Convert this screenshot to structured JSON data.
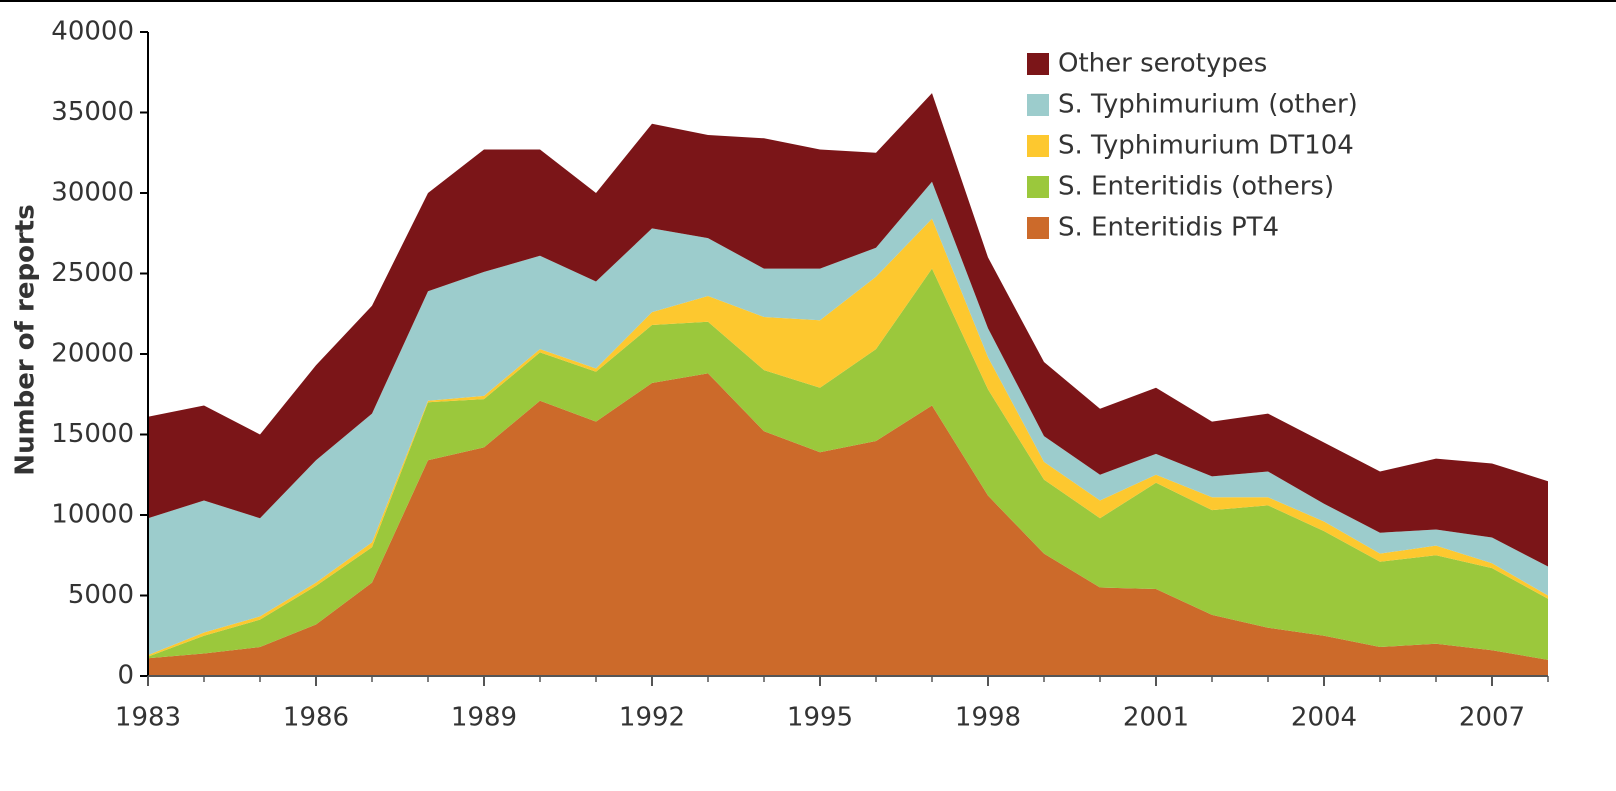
{
  "chart_data": {
    "type": "stacked_area",
    "y_label": "Number of reports",
    "x": [
      1983,
      1984,
      1985,
      1986,
      1987,
      1988,
      1989,
      1990,
      1991,
      1992,
      1993,
      1994,
      1995,
      1996,
      1997,
      1998,
      1999,
      2000,
      2001,
      2002,
      2003,
      2004,
      2005,
      2006,
      2007,
      2008
    ],
    "xlim": [
      1983,
      2008
    ],
    "xticks": [
      1983,
      1986,
      1989,
      1992,
      1995,
      1998,
      2001,
      2004,
      2007
    ],
    "ylim": [
      0,
      40000
    ],
    "yticks": [
      0,
      5000,
      10000,
      15000,
      20000,
      25000,
      30000,
      35000,
      40000
    ],
    "legend": "top-right",
    "series": [
      {
        "name": "S. Enteritidis PT4",
        "color": "#cc6a2a",
        "values": [
          1100,
          1400,
          1800,
          3200,
          5800,
          13400,
          14200,
          17100,
          15800,
          18200,
          18800,
          15200,
          13900,
          14600,
          16800,
          11200,
          7600,
          5500,
          5400,
          3800,
          3000,
          2500,
          1800,
          2000,
          1600,
          1000
        ]
      },
      {
        "name": "S. Enteritidis (others)",
        "color": "#9bc83c",
        "values": [
          100,
          1100,
          1700,
          2400,
          2200,
          3600,
          3000,
          3000,
          3100,
          3600,
          3200,
          3800,
          4000,
          5700,
          8500,
          6600,
          4600,
          4300,
          6600,
          6500,
          7600,
          6500,
          5300,
          5500,
          5100,
          3800
        ]
      },
      {
        "name": "S. Typhimurium DT104",
        "color": "#fdc82f",
        "values": [
          100,
          200,
          200,
          200,
          300,
          100,
          200,
          200,
          200,
          800,
          1600,
          3300,
          4200,
          4500,
          3100,
          2000,
          1100,
          1100,
          500,
          800,
          500,
          600,
          500,
          600,
          300,
          200
        ]
      },
      {
        "name": "S. Typhimurium (other)",
        "color": "#9ccccc",
        "values": [
          8500,
          8200,
          6100,
          7600,
          8000,
          6800,
          7700,
          5800,
          5400,
          5200,
          3600,
          3000,
          3200,
          1800,
          2300,
          1800,
          1600,
          1600,
          1300,
          1300,
          1600,
          1100,
          1300,
          1000,
          1600,
          1800
        ]
      },
      {
        "name": "Other serotypes",
        "color": "#7b1518",
        "values": [
          6300,
          5900,
          5200,
          5900,
          6700,
          6100,
          7600,
          6600,
          5500,
          6500,
          6400,
          8100,
          7400,
          5900,
          5500,
          4400,
          4600,
          4100,
          4100,
          3400,
          3600,
          3800,
          3800,
          4400,
          4600,
          5300
        ]
      }
    ]
  }
}
